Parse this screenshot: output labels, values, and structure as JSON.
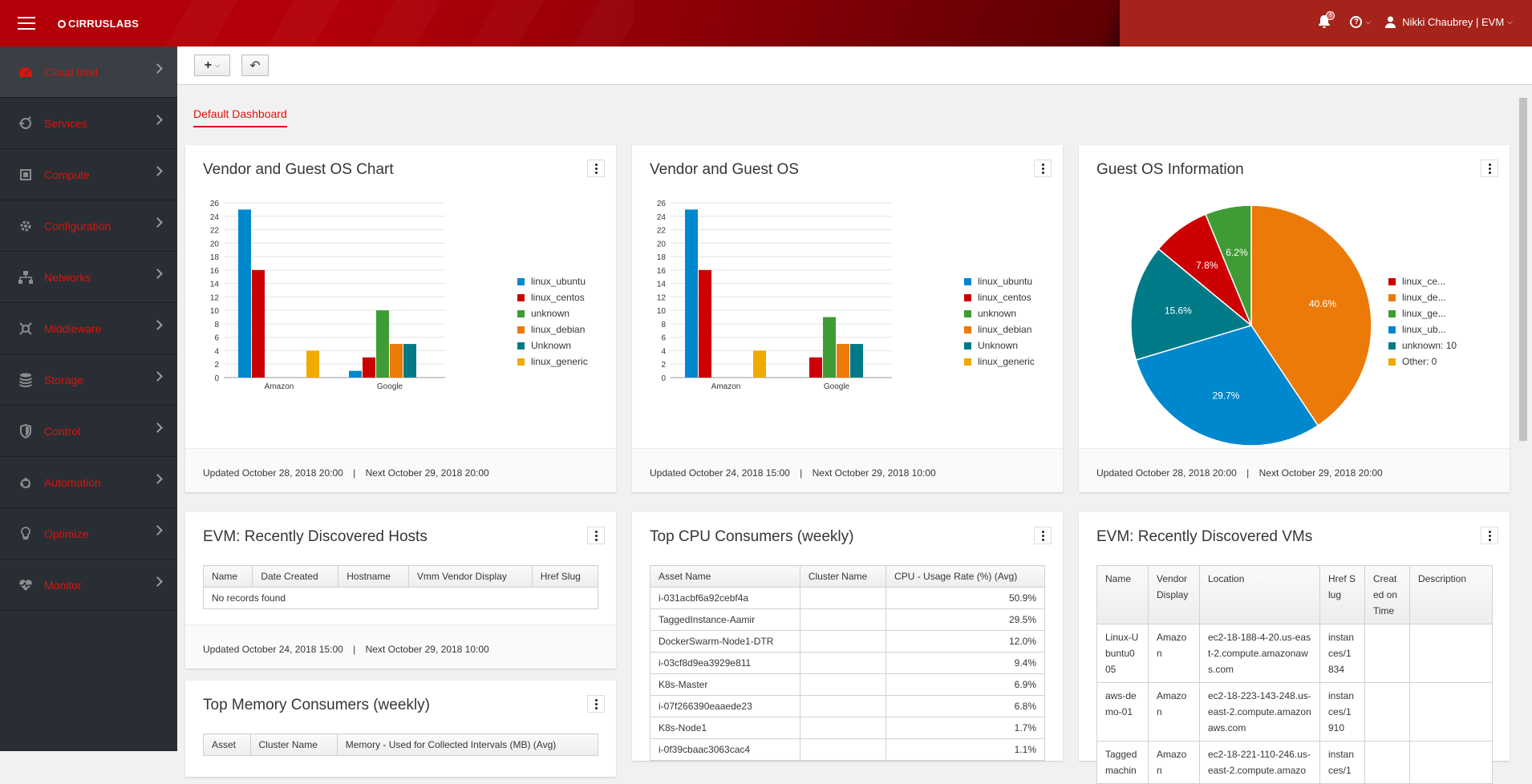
{
  "header": {
    "brand": "CIRRUSLABS",
    "notification_count": "8",
    "user": "Nikki Chaubrey | EVM",
    "icons": [
      "hamburger-icon",
      "bell-icon",
      "help-icon",
      "user-icon"
    ]
  },
  "sidebar": {
    "items": [
      {
        "label": "Cloud Intel",
        "icon": "dashboard-icon",
        "active": true
      },
      {
        "label": "Services",
        "icon": "services-icon"
      },
      {
        "label": "Compute",
        "icon": "compute-icon"
      },
      {
        "label": "Configuration",
        "icon": "gear-icon"
      },
      {
        "label": "Networks",
        "icon": "network-icon"
      },
      {
        "label": "Middleware",
        "icon": "middleware-icon"
      },
      {
        "label": "Storage",
        "icon": "storage-icon"
      },
      {
        "label": "Control",
        "icon": "shield-icon"
      },
      {
        "label": "Automation",
        "icon": "recycle-icon"
      },
      {
        "label": "Optimize",
        "icon": "lightbulb-icon"
      },
      {
        "label": "Monitor",
        "icon": "heartbeat-icon"
      }
    ]
  },
  "toolbar": {
    "add_label": "+",
    "back_label": "↶"
  },
  "tabs": [
    {
      "label": "Default Dashboard"
    }
  ],
  "widgets": {
    "vendor_chart": {
      "title": "Vendor and Guest OS Chart",
      "footer_updated": "Updated October 28, 2018 20:00",
      "footer_sep": "|",
      "footer_next": "Next October 29, 2018 20:00"
    },
    "vendor_os": {
      "title": "Vendor and Guest OS",
      "footer_updated": "Updated October 24, 2018 15:00",
      "footer_sep": "|",
      "footer_next": "Next October 29, 2018 10:00"
    },
    "guest_os_info": {
      "title": "Guest OS Information",
      "footer_updated": "Updated October 28, 2018 20:00",
      "footer_sep": "|",
      "footer_next": "Next October 29, 2018 20:00"
    },
    "hosts": {
      "title": "EVM: Recently Discovered Hosts",
      "columns": [
        "Name",
        "Date Created",
        "Hostname",
        "Vmm Vendor Display",
        "Href Slug"
      ],
      "empty": "No records found",
      "footer_updated": "Updated October 24, 2018 15:00",
      "footer_sep": "|",
      "footer_next": "Next October 29, 2018 10:00"
    },
    "cpu": {
      "title": "Top CPU Consumers (weekly)",
      "columns": [
        "Asset Name",
        "Cluster Name",
        "CPU - Usage Rate (%) (Avg)"
      ],
      "rows": [
        [
          "i-031acbf6a92cebf4a",
          "",
          "50.9%"
        ],
        [
          "TaggedInstance-Aamir",
          "",
          "29.5%"
        ],
        [
          "DockerSwarm-Node1-DTR",
          "",
          "12.0%"
        ],
        [
          "i-03cf8d9ea3929e811",
          "",
          "9.4%"
        ],
        [
          "K8s-Master",
          "",
          "6.9%"
        ],
        [
          "i-07f266390eaaede23",
          "",
          "6.8%"
        ],
        [
          "K8s-Node1",
          "",
          "1.7%"
        ],
        [
          "i-0f39cbaac3063cac4",
          "",
          "1.1%"
        ]
      ]
    },
    "vms": {
      "title": "EVM: Recently Discovered VMs",
      "columns": [
        "Name",
        "Vendor Display",
        "Location",
        "Href Slug",
        "Created on Time",
        "Description"
      ],
      "rows": [
        [
          "Linux-Ubuntu005",
          "Amazon",
          "ec2-18-188-4-20.us-east-2.compute.amazonaws.com",
          "instances/1834",
          "",
          ""
        ],
        [
          "aws-demo-01",
          "Amazon",
          "ec2-18-223-143-248.us-east-2.compute.amazonaws.com",
          "instances/1910",
          "",
          ""
        ],
        [
          "Tagged machin",
          "Amazon",
          "ec2-18-221-110-246.us-east-2.compute.amazo",
          "instances/1",
          "",
          ""
        ]
      ]
    },
    "memory": {
      "title": "Top Memory Consumers (weekly)",
      "columns": [
        "Asset",
        "Cluster Name",
        "Memory - Used for Collected Intervals (MB) (Avg)"
      ]
    }
  },
  "chart_data": [
    {
      "type": "bar",
      "categories": [
        "Amazon",
        "Google"
      ],
      "ylim": [
        0,
        26
      ],
      "yticks": [
        0,
        2,
        4,
        6,
        8,
        10,
        12,
        14,
        16,
        18,
        20,
        22,
        24,
        26
      ],
      "series": [
        {
          "name": "linux_ubuntu",
          "color": "#0088ce",
          "values": [
            25,
            1
          ]
        },
        {
          "name": "linux_centos",
          "color": "#cc0000",
          "values": [
            16,
            3
          ]
        },
        {
          "name": "unknown",
          "color": "#3f9c35",
          "values": [
            0,
            10
          ]
        },
        {
          "name": "linux_debian",
          "color": "#ec7a08",
          "values": [
            0,
            5
          ]
        },
        {
          "name": "Unknown",
          "color": "#007a87",
          "values": [
            0,
            5
          ]
        },
        {
          "name": "linux_generic",
          "color": "#f0ab00",
          "values": [
            4,
            0
          ]
        }
      ]
    },
    {
      "type": "bar",
      "categories": [
        "Amazon",
        "Google"
      ],
      "ylim": [
        0,
        26
      ],
      "yticks": [
        0,
        2,
        4,
        6,
        8,
        10,
        12,
        14,
        16,
        18,
        20,
        22,
        24,
        26
      ],
      "series": [
        {
          "name": "linux_ubuntu",
          "color": "#0088ce",
          "values": [
            25,
            0
          ]
        },
        {
          "name": "linux_centos",
          "color": "#cc0000",
          "values": [
            16,
            3
          ]
        },
        {
          "name": "unknown",
          "color": "#3f9c35",
          "values": [
            0,
            9
          ]
        },
        {
          "name": "linux_debian",
          "color": "#ec7a08",
          "values": [
            0,
            5
          ]
        },
        {
          "name": "Unknown",
          "color": "#007a87",
          "values": [
            0,
            5
          ]
        },
        {
          "name": "linux_generic",
          "color": "#f0ab00",
          "values": [
            4,
            0
          ]
        }
      ]
    },
    {
      "type": "pie",
      "slices": [
        {
          "legend": "linux_ce...",
          "color": "#cc0000",
          "value": 7.8,
          "label": "7.8%"
        },
        {
          "legend": "linux_de...",
          "color": "#ec7a08",
          "value": 40.6,
          "label": "40.6%"
        },
        {
          "legend": "linux_ge...",
          "color": "#3f9c35",
          "value": 6.2,
          "label": "6.2%"
        },
        {
          "legend": "linux_ub...",
          "color": "#0088ce",
          "value": 29.7,
          "label": "29.7%"
        },
        {
          "legend": "unknown: 10",
          "color": "#007a87",
          "value": 15.6,
          "label": "15.6%"
        },
        {
          "legend": "Other: 0",
          "color": "#f0ab00",
          "value": 0,
          "label": ""
        }
      ],
      "draw_order": [
        1,
        3,
        4,
        0,
        2
      ]
    }
  ]
}
